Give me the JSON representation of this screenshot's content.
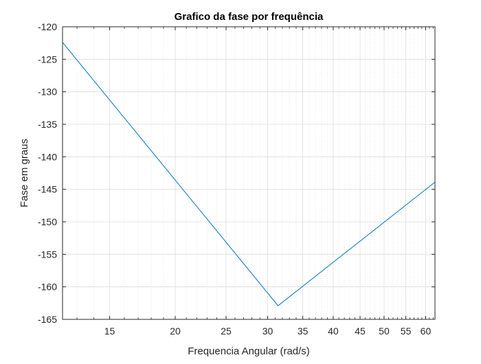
{
  "chart_data": {
    "type": "line",
    "title": "Grafico da fase por frequência",
    "xlabel": "Frequencia Angular (rad/s)",
    "ylabel": "Fase em graus",
    "xscale": "log",
    "xlim": [
      12.2,
      62.5
    ],
    "ylim": [
      -165,
      -120
    ],
    "xticks": [
      15,
      20,
      25,
      30,
      35,
      40,
      45,
      50,
      55,
      60
    ],
    "xtick_labels": [
      "15",
      "20",
      "25",
      "30",
      "35",
      "40",
      "45",
      "50",
      "55",
      "60"
    ],
    "yticks": [
      -120,
      -125,
      -130,
      -135,
      -140,
      -145,
      -150,
      -155,
      -160,
      -165
    ],
    "ytick_labels": [
      "-120",
      "-125",
      "-130",
      "-135",
      "-140",
      "-145",
      "-150",
      "-155",
      "-160",
      "-165"
    ],
    "grid": true,
    "minor_grid": true,
    "series": [
      {
        "color": "#0072BD",
        "x": [
          12.2,
          31.4,
          62.5
        ],
        "y": [
          -122.4,
          -162.9,
          -143.9
        ]
      }
    ]
  }
}
